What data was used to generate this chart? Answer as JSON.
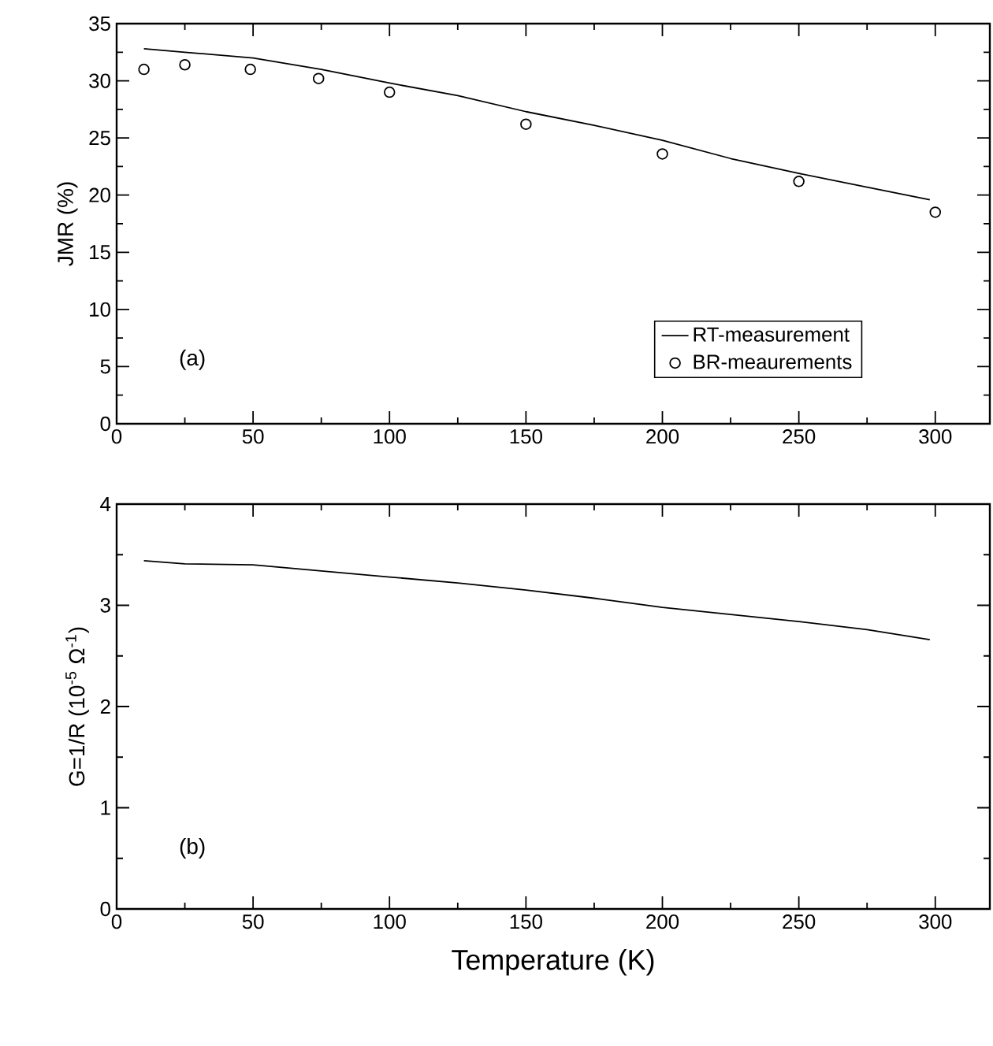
{
  "chart_data": [
    {
      "type": "line",
      "ylabel": "JMR (%)",
      "xlim": [
        0,
        320
      ],
      "xticks": [
        0,
        50,
        100,
        150,
        200,
        250,
        300
      ],
      "ylim": [
        0,
        35
      ],
      "yticks": [
        0,
        5,
        10,
        15,
        20,
        25,
        30,
        35
      ],
      "legend": "bottom right",
      "annotations": [
        "(a)"
      ],
      "series": [
        {
          "name": "RT-measurement",
          "type": "line",
          "color": "#000000",
          "marker": "none",
          "x": [
            10,
            25,
            50,
            75,
            100,
            125,
            150,
            175,
            200,
            225,
            250,
            275,
            298
          ],
          "values": [
            32.8,
            32.5,
            32.0,
            31.0,
            29.8,
            28.7,
            27.3,
            26.1,
            24.8,
            23.2,
            21.9,
            20.7,
            19.6
          ]
        },
        {
          "name": "BR-meaurements",
          "type": "scatter",
          "color": "#000000",
          "marker": "circle",
          "x": [
            10,
            25,
            49,
            74,
            100,
            150,
            200,
            250,
            300
          ],
          "values": [
            31.0,
            31.4,
            31.0,
            30.2,
            29.0,
            26.2,
            23.6,
            21.2,
            18.5
          ]
        }
      ]
    },
    {
      "type": "line",
      "xlabel": "Temperature (K)",
      "ylabel": "G=1/R (10$^{-5}$ Ω$^{-1}$)",
      "xlim": [
        0,
        320
      ],
      "xticks": [
        0,
        50,
        100,
        150,
        200,
        250,
        300
      ],
      "ylim": [
        0,
        4
      ],
      "yticks": [
        0,
        1,
        2,
        3,
        4
      ],
      "annotations": [
        "(b)"
      ],
      "series": [
        {
          "color": "#000000",
          "x": [
            10,
            25,
            50,
            75,
            100,
            125,
            150,
            175,
            200,
            225,
            250,
            275,
            298
          ],
          "values": [
            3.44,
            3.41,
            3.4,
            3.34,
            3.28,
            3.22,
            3.15,
            3.07,
            2.98,
            2.91,
            2.84,
            2.76,
            2.66
          ]
        }
      ]
    }
  ]
}
